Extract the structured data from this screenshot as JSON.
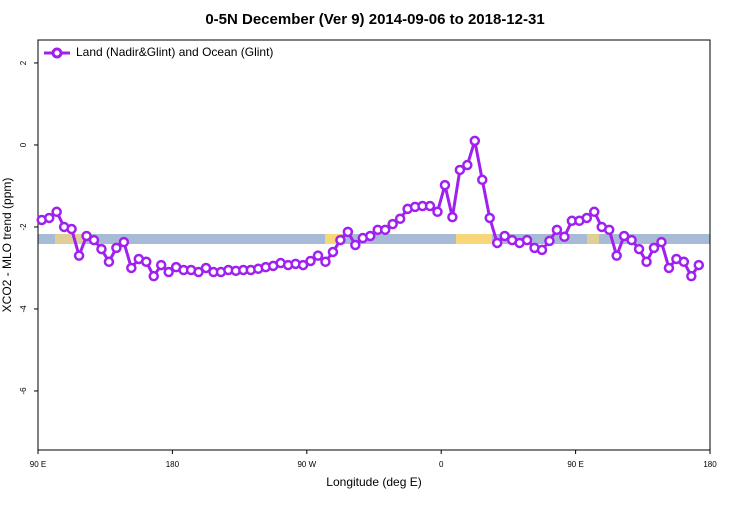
{
  "chart_data": {
    "type": "line",
    "title": "0-5N December (Ver 9)   2014-09-06 to 2018-12-31",
    "x_label": "Longitude (deg E)",
    "y_label": "XCO2 - MLO trend (ppm)",
    "xlim": [
      90,
      540
    ],
    "ylim": [
      -7.44,
      2.56
    ],
    "xticks": [
      {
        "value": 90,
        "label": "90 E"
      },
      180,
      {
        "value": 270,
        "label": "90 W"
      },
      {
        "value": 360,
        "label": "0"
      },
      {
        "value": 450,
        "label": "90 E"
      },
      {
        "value": 540,
        "label": "180"
      }
    ],
    "yticks": [
      -6,
      -4,
      -2,
      0,
      2
    ],
    "legend": "top-left",
    "x": [
      92.5,
      97.5,
      102.5,
      107.5,
      112.5,
      117.5,
      122.5,
      127.5,
      132.5,
      137.5,
      142.5,
      147.5,
      152.5,
      157.5,
      162.5,
      167.5,
      172.5,
      177.5,
      182.5,
      187.5,
      192.5,
      197.5,
      202.5,
      207.5,
      212.5,
      217.5,
      222.5,
      227.5,
      232.5,
      237.5,
      242.5,
      247.5,
      252.5,
      257.5,
      262.5,
      267.5,
      272.5,
      277.5,
      282.5,
      287.5,
      292.5,
      297.5,
      302.5,
      307.5,
      312.5,
      317.5,
      322.5,
      327.5,
      332.5,
      337.5,
      342.5,
      347.5,
      352.5,
      357.5,
      362.5,
      367.5,
      372.5,
      377.5,
      382.5,
      387.5,
      392.5,
      397.5,
      402.5,
      407.5,
      412.5,
      417.5,
      422.5,
      427.5,
      432.5,
      437.5,
      442.5,
      447.5,
      452.5,
      457.5,
      462.5,
      467.5,
      472.5,
      477.5,
      482.5,
      487.5,
      492.5,
      497.5,
      502.5,
      507.5,
      512.5,
      517.5,
      522.5,
      527.5,
      532.5
    ],
    "series": [
      {
        "name": "Land (Nadir&Glint) and Ocean (Glint)",
        "color": "#a020f0",
        "values": [
          -1.83,
          -1.78,
          -1.63,
          -2.0,
          -2.05,
          -2.7,
          -2.22,
          -2.32,
          -2.54,
          -2.85,
          -2.51,
          -2.37,
          -3.0,
          -2.78,
          -2.85,
          -3.2,
          -2.93,
          -3.1,
          -2.98,
          -3.05,
          -3.05,
          -3.1,
          -3.0,
          -3.1,
          -3.1,
          -3.05,
          -3.07,
          -3.05,
          -3.05,
          -3.02,
          -2.98,
          -2.95,
          -2.88,
          -2.93,
          -2.9,
          -2.93,
          -2.83,
          -2.7,
          -2.85,
          -2.61,
          -2.32,
          -2.12,
          -2.44,
          -2.27,
          -2.22,
          -2.07,
          -2.07,
          -1.93,
          -1.8,
          -1.56,
          -1.51,
          -1.49,
          -1.49,
          -1.63,
          -0.98,
          -1.76,
          -0.61,
          -0.49,
          0.1,
          -0.85,
          -1.78,
          -2.39,
          -2.22,
          -2.32,
          -2.39,
          -2.32,
          -2.51,
          -2.56,
          -2.34,
          -2.07,
          -2.24,
          -1.85,
          -1.85,
          -1.78,
          -1.63,
          -2.0,
          -2.07,
          -2.7,
          -2.22,
          -2.32,
          -2.54,
          -2.85,
          -2.51,
          -2.37,
          -3.0,
          -2.78,
          -2.85,
          -3.2,
          -2.93
        ]
      }
    ]
  }
}
